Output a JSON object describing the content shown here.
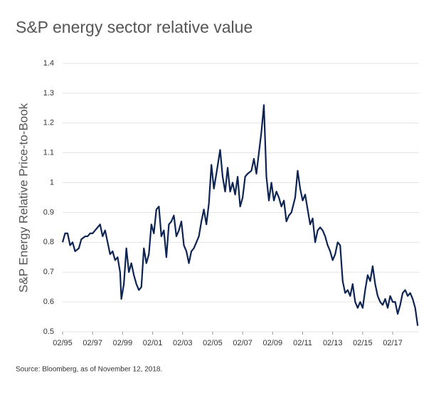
{
  "chart_data": {
    "type": "line",
    "title": "S&P energy sector relative value",
    "y_label": "S&P Energy Relative Price-to-Book",
    "source": "Source: Bloomberg, as of November 12, 2018.",
    "color": "#0d2452",
    "grid": true,
    "xlim": [
      "1995-02",
      "2018-11"
    ],
    "xticks": [
      {
        "value": "1995-02",
        "label": "02/95"
      },
      {
        "value": "1997-02",
        "label": "02/97"
      },
      {
        "value": "1999-02",
        "label": "02/99"
      },
      {
        "value": "2001-02",
        "label": "02/01"
      },
      {
        "value": "2003-02",
        "label": "02/03"
      },
      {
        "value": "2005-02",
        "label": "02/05"
      },
      {
        "value": "2007-02",
        "label": "02/07"
      },
      {
        "value": "2009-02",
        "label": "02/09"
      },
      {
        "value": "2011-02",
        "label": "02/11"
      },
      {
        "value": "2013-02",
        "label": "02/13"
      },
      {
        "value": "2015-02",
        "label": "02/15"
      },
      {
        "value": "2017-02",
        "label": "02/17"
      }
    ],
    "ylim": [
      0.5,
      1.4
    ],
    "yticks": [
      0.5,
      0.6,
      0.7,
      0.8,
      0.9,
      1,
      1.1,
      1.2,
      1.3,
      1.4
    ],
    "x": [
      "1995-02",
      "1995-04",
      "1995-06",
      "1995-08",
      "1995-10",
      "1995-12",
      "1996-03",
      "1996-05",
      "1996-08",
      "1996-10",
      "1996-12",
      "1997-02",
      "1997-04",
      "1997-06",
      "1997-08",
      "1997-10",
      "1997-12",
      "1998-02",
      "1998-04",
      "1998-06",
      "1998-08",
      "1998-10",
      "1998-12",
      "1999-01",
      "1999-03",
      "1999-05",
      "1999-07",
      "1999-09",
      "1999-11",
      "2000-01",
      "2000-03",
      "2000-05",
      "2000-07",
      "2000-09",
      "2000-11",
      "2001-01",
      "2001-03",
      "2001-05",
      "2001-07",
      "2001-09",
      "2001-11",
      "2002-01",
      "2002-03",
      "2002-05",
      "2002-07",
      "2002-09",
      "2002-11",
      "2003-01",
      "2003-03",
      "2003-05",
      "2003-07",
      "2003-09",
      "2003-11",
      "2004-01",
      "2004-03",
      "2004-05",
      "2004-07",
      "2004-09",
      "2004-11",
      "2005-01",
      "2005-03",
      "2005-05",
      "2005-08",
      "2005-10",
      "2005-12",
      "2006-02",
      "2006-04",
      "2006-06",
      "2006-08",
      "2006-10",
      "2006-12",
      "2007-02",
      "2007-04",
      "2007-06",
      "2007-09",
      "2007-11",
      "2008-01",
      "2008-03",
      "2008-05",
      "2008-07",
      "2008-09",
      "2008-11",
      "2009-01",
      "2009-03",
      "2009-05",
      "2009-07",
      "2009-09",
      "2009-11",
      "2010-01",
      "2010-03",
      "2010-05",
      "2010-08",
      "2010-10",
      "2010-12",
      "2011-02",
      "2011-04",
      "2011-06",
      "2011-08",
      "2011-10",
      "2011-12",
      "2012-02",
      "2012-04",
      "2012-06",
      "2012-08",
      "2012-10",
      "2012-12",
      "2013-02",
      "2013-04",
      "2013-06",
      "2013-08",
      "2013-10",
      "2013-12",
      "2014-02",
      "2014-04",
      "2014-06",
      "2014-08",
      "2014-10",
      "2014-12",
      "2015-02",
      "2015-04",
      "2015-06",
      "2015-08",
      "2015-10",
      "2015-12",
      "2016-02",
      "2016-04",
      "2016-06",
      "2016-08",
      "2016-10",
      "2016-12",
      "2017-02",
      "2017-04",
      "2017-06",
      "2017-08",
      "2017-10",
      "2017-12",
      "2018-02",
      "2018-04",
      "2018-06",
      "2018-08",
      "2018-10"
    ],
    "values": [
      0.8,
      0.83,
      0.83,
      0.79,
      0.8,
      0.77,
      0.78,
      0.81,
      0.82,
      0.82,
      0.83,
      0.83,
      0.84,
      0.85,
      0.86,
      0.82,
      0.84,
      0.8,
      0.76,
      0.77,
      0.74,
      0.75,
      0.7,
      0.61,
      0.66,
      0.78,
      0.7,
      0.73,
      0.69,
      0.66,
      0.64,
      0.65,
      0.78,
      0.73,
      0.76,
      0.86,
      0.83,
      0.91,
      0.92,
      0.82,
      0.84,
      0.75,
      0.86,
      0.87,
      0.89,
      0.82,
      0.84,
      0.87,
      0.79,
      0.77,
      0.73,
      0.77,
      0.78,
      0.8,
      0.82,
      0.87,
      0.91,
      0.86,
      0.93,
      1.06,
      0.98,
      1.03,
      1.11,
      1.02,
      0.97,
      1.05,
      0.97,
      1.0,
      0.96,
      1.02,
      0.92,
      0.95,
      1.02,
      1.03,
      1.04,
      1.08,
      1.03,
      1.1,
      1.17,
      1.26,
      1.02,
      0.94,
      1.0,
      0.94,
      0.97,
      0.95,
      0.92,
      0.94,
      0.87,
      0.89,
      0.9,
      0.95,
      1.04,
      0.98,
      0.94,
      0.96,
      0.91,
      0.86,
      0.88,
      0.8,
      0.84,
      0.85,
      0.84,
      0.82,
      0.79,
      0.77,
      0.74,
      0.76,
      0.8,
      0.79,
      0.67,
      0.63,
      0.64,
      0.62,
      0.66,
      0.6,
      0.58,
      0.6,
      0.58,
      0.64,
      0.69,
      0.67,
      0.72,
      0.66,
      0.62,
      0.6,
      0.59,
      0.61,
      0.58,
      0.62,
      0.6,
      0.6,
      0.56,
      0.59,
      0.63,
      0.64,
      0.62,
      0.63,
      0.61,
      0.58,
      0.52
    ]
  }
}
